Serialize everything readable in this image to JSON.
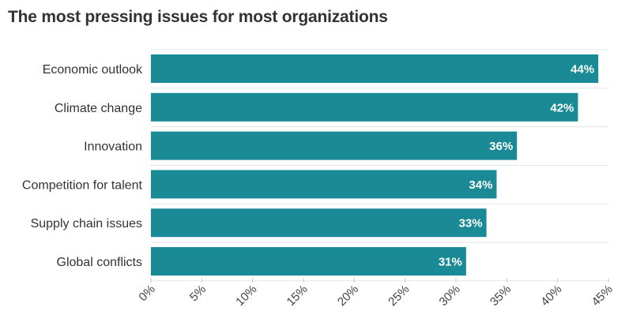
{
  "title": "The most pressing issues for most organizations",
  "chart_data": {
    "type": "bar",
    "orientation": "horizontal",
    "title": "The most pressing issues for most organizations",
    "categories": [
      "Economic outlook",
      "Climate change",
      "Innovation",
      "Competition for talent",
      "Supply chain issues",
      "Global conflicts"
    ],
    "values": [
      44,
      42,
      36,
      34,
      33,
      31
    ],
    "value_labels": [
      "44%",
      "42%",
      "36%",
      "34%",
      "33%",
      "31%"
    ],
    "xlim": [
      0,
      45
    ],
    "xticks": [
      0,
      5,
      10,
      15,
      20,
      25,
      30,
      35,
      40,
      45
    ],
    "xtick_labels": [
      "0%",
      "5%",
      "10%",
      "15%",
      "20%",
      "25%",
      "30%",
      "35%",
      "40%",
      "45%"
    ],
    "bar_color": "#1a8a96",
    "grid": true
  }
}
